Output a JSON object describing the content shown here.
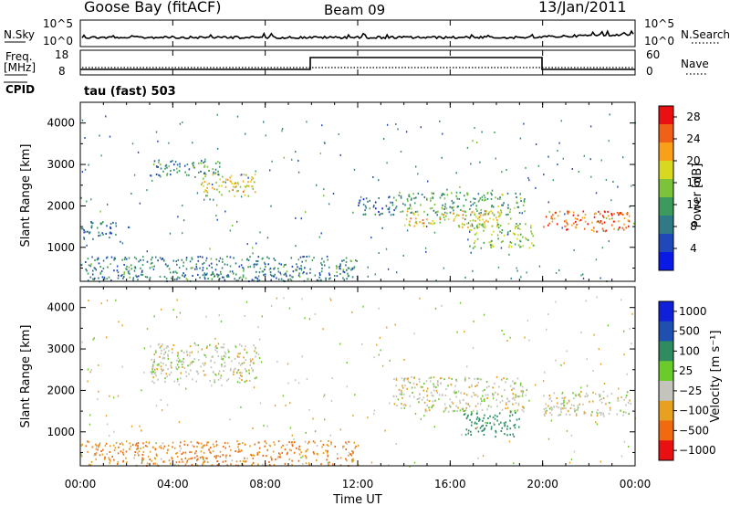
{
  "header": {
    "station": "Goose Bay (fitACF)",
    "beam": "Beam 09",
    "date": "13/Jan/2011"
  },
  "noise_panel": {
    "left_label": "N.Sky",
    "right_label": "N.Search",
    "left_ticks": [
      "10^5",
      "10^0"
    ],
    "right_ticks": [
      "10^5",
      "10^0"
    ]
  },
  "freq_panel": {
    "left_label_line1": "Freq.",
    "left_label_line2": "[MHz]",
    "right_label": "Nave",
    "left_ticks": [
      "18",
      "8"
    ],
    "right_ticks": [
      "60",
      "0"
    ],
    "cpid_label": "CPID",
    "mode_label": "tau (fast) 503"
  },
  "chart_data": [
    {
      "type": "heatmap",
      "title": "",
      "xlabel": "Time UT",
      "ylabel": "Slant Range [km]",
      "xlim": [
        0,
        24
      ],
      "ylim": [
        180,
        4500
      ],
      "x_ticks": [
        "00:00",
        "04:00",
        "08:00",
        "12:00",
        "16:00",
        "20:00",
        "00:00"
      ],
      "y_ticks": [
        1000,
        2000,
        3000,
        4000
      ],
      "colorbar": {
        "label": "Power [dB]",
        "ticks": [
          4,
          8,
          12,
          16,
          20,
          24,
          28
        ],
        "range": [
          0,
          30
        ],
        "colors": [
          "#0a1ae6",
          "#1f48b8",
          "#2f7a86",
          "#3c9a5c",
          "#7cc23a",
          "#d8d820",
          "#f8a018",
          "#f06018",
          "#e81010"
        ]
      },
      "regions": [
        {
          "t0": 3.0,
          "t1": 6.2,
          "r0": 2750,
          "r1": 3150,
          "power": 10
        },
        {
          "t0": 5.2,
          "t1": 7.6,
          "r0": 2250,
          "r1": 2800,
          "power": 19
        },
        {
          "t0": 0.0,
          "t1": 1.6,
          "r0": 1200,
          "r1": 1650,
          "power": 8
        },
        {
          "t0": 12.0,
          "t1": 13.6,
          "r0": 1800,
          "r1": 2250,
          "power": 7
        },
        {
          "t0": 13.5,
          "t1": 19.2,
          "r0": 1800,
          "r1": 2350,
          "power": 12
        },
        {
          "t0": 14.0,
          "t1": 18.6,
          "r0": 1500,
          "r1": 1900,
          "power": 19
        },
        {
          "t0": 16.8,
          "t1": 19.6,
          "r0": 1000,
          "r1": 1600,
          "power": 15
        },
        {
          "t0": 20.0,
          "t1": 23.8,
          "r0": 1400,
          "r1": 1900,
          "power": 25
        },
        {
          "t0": 0.0,
          "t1": 12.0,
          "r0": 200,
          "r1": 800,
          "power": 9
        }
      ]
    },
    {
      "type": "heatmap",
      "title": "",
      "xlabel": "Time UT",
      "ylabel": "Slant Range [km]",
      "xlim": [
        0,
        24
      ],
      "ylim": [
        180,
        4500
      ],
      "x_ticks": [
        "00:00",
        "04:00",
        "08:00",
        "12:00",
        "16:00",
        "20:00",
        "00:00"
      ],
      "y_ticks": [
        1000,
        2000,
        3000,
        4000
      ],
      "colorbar": {
        "label": "Velocity [m s⁻¹]",
        "ticks": [
          "1000",
          "500",
          "100",
          "25",
          "−25",
          "−100",
          "−500",
          "−1000"
        ],
        "colors": [
          "#1020d8",
          "#1f4fb0",
          "#2e8c60",
          "#6acb2a",
          "#c4c4bc",
          "#e8a020",
          "#f06a10",
          "#e81010"
        ]
      },
      "regions": [
        {
          "t0": 3.0,
          "t1": 7.6,
          "r0": 2200,
          "r1": 3150,
          "velocity": 0
        },
        {
          "t0": 13.5,
          "t1": 19.2,
          "r0": 1500,
          "r1": 2350,
          "velocity": 0
        },
        {
          "t0": 16.5,
          "t1": 19.0,
          "r0": 900,
          "r1": 1500,
          "velocity": 150
        },
        {
          "t0": 20.0,
          "t1": 23.8,
          "r0": 1400,
          "r1": 2000,
          "velocity": 0
        },
        {
          "t0": 0.0,
          "t1": 12.0,
          "r0": 200,
          "r1": 800,
          "velocity": -60
        }
      ]
    }
  ]
}
